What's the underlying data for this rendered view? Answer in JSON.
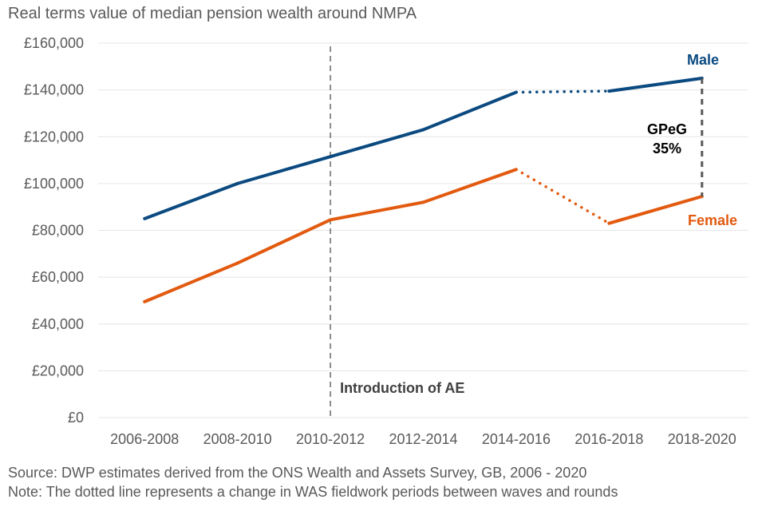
{
  "chart_data": {
    "type": "line",
    "title": "Real terms value of median pension wealth around NMPA",
    "xlabel": "",
    "ylabel": "",
    "categories": [
      "2006-2008",
      "2008-2010",
      "2010-2012",
      "2012-2014",
      "2014-2016",
      "2016-2018",
      "2018-2020"
    ],
    "ylim": [
      0,
      160000
    ],
    "yticks": [
      0,
      20000,
      40000,
      60000,
      80000,
      100000,
      120000,
      140000,
      160000
    ],
    "ytick_labels": [
      "£0",
      "£20,000",
      "£40,000",
      "£60,000",
      "£80,000",
      "£100,000",
      "£120,000",
      "£140,000",
      "£160,000"
    ],
    "grid": true,
    "series": [
      {
        "name": "Male",
        "color": "#0b4a80",
        "values": [
          85000,
          100000,
          111500,
          123000,
          139000,
          139500,
          145000
        ],
        "dotted_segment": [
          "2014-2016",
          "2016-2018"
        ]
      },
      {
        "name": "Female",
        "color": "#e25a0f",
        "values": [
          49500,
          66000,
          84500,
          92000,
          106000,
          83000,
          94500
        ],
        "dotted_segment": [
          "2014-2016",
          "2016-2018"
        ]
      }
    ],
    "annotations": {
      "vline_label": "Introduction of AE",
      "vline_at": "2010-2012",
      "gap_label_1": "GPeG",
      "gap_label_2": "35%",
      "gap_at": "2018-2020"
    }
  },
  "notes": {
    "source": "Source: DWP estimates derived from the ONS Wealth and Assets Survey, GB, 2006 - 2020",
    "note": "Note: The dotted line represents a change in WAS fieldwork periods between waves and rounds"
  }
}
